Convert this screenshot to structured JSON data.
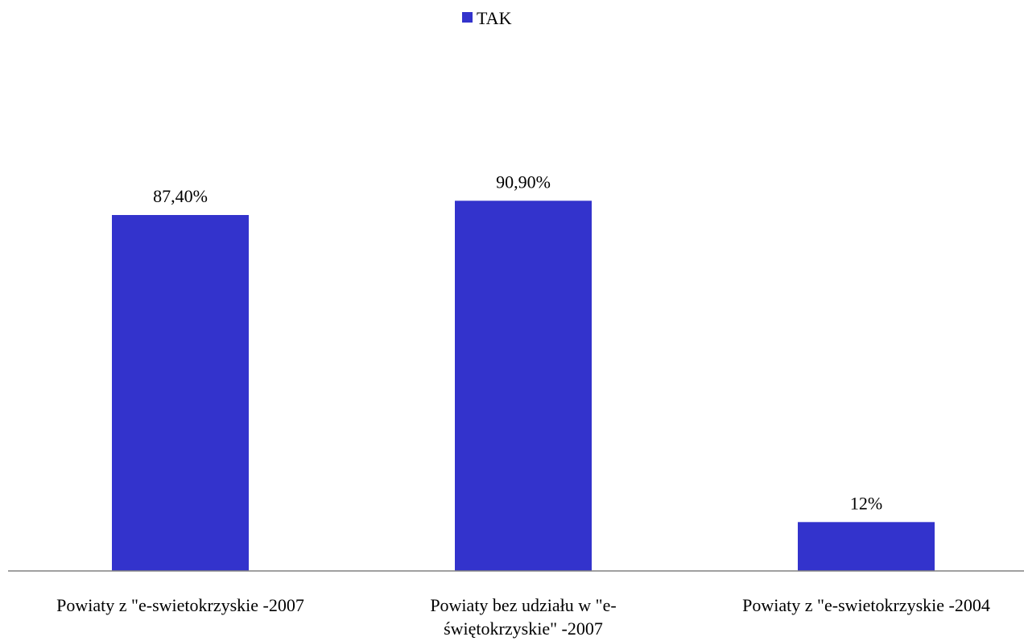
{
  "chart_data": {
    "type": "bar",
    "categories": [
      "Powiaty  z \"e-swietokrzyskie -2007",
      "Powiaty bez udziału w \"e-świętokrzyskie\" -2007",
      "Powiaty  z \"e-swietokrzyskie -2004"
    ],
    "series": [
      {
        "name": "TAK",
        "values": [
          87.4,
          90.9,
          12
        ],
        "data_labels": [
          "87,40%",
          "90,90%",
          "12%"
        ],
        "color": "#3333CC"
      }
    ],
    "ylim": [
      0,
      100
    ],
    "grid": false,
    "legend": "top-center",
    "axis_color": "#808080"
  }
}
